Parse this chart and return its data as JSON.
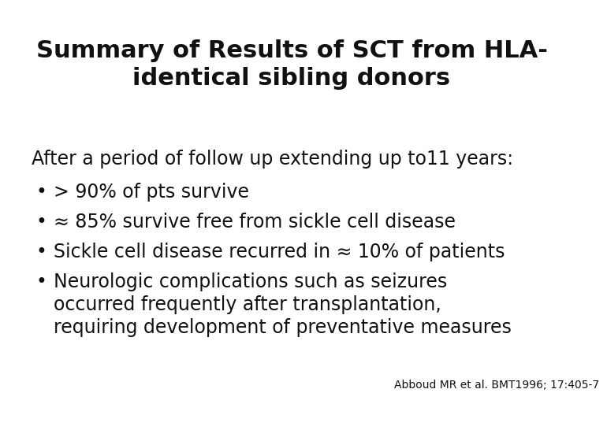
{
  "title_line1": "Summary of Results of SCT from HLA-",
  "title_line2": "identical sibling donors",
  "title_fontsize": 22,
  "title_fontweight": "bold",
  "title_color": "#111111",
  "intro_text": "After a period of follow up extending up to11 years:",
  "intro_fontsize": 17,
  "bullet_items": [
    "> 90% of pts survive",
    "≈ 85% survive free from sickle cell disease",
    "Sickle cell disease recurred in ≈ 10% of patients",
    "Neurologic complications such as seizures\noccurred frequently after transplantation,\nrequiring development of preventative measures"
  ],
  "bullet_fontsize": 17,
  "citation": "Abboud MR et al. BMT1996; 17:405-7",
  "citation_fontsize": 10,
  "background_color": "#ffffff",
  "text_color": "#111111",
  "font_family": "DejaVu Sans"
}
